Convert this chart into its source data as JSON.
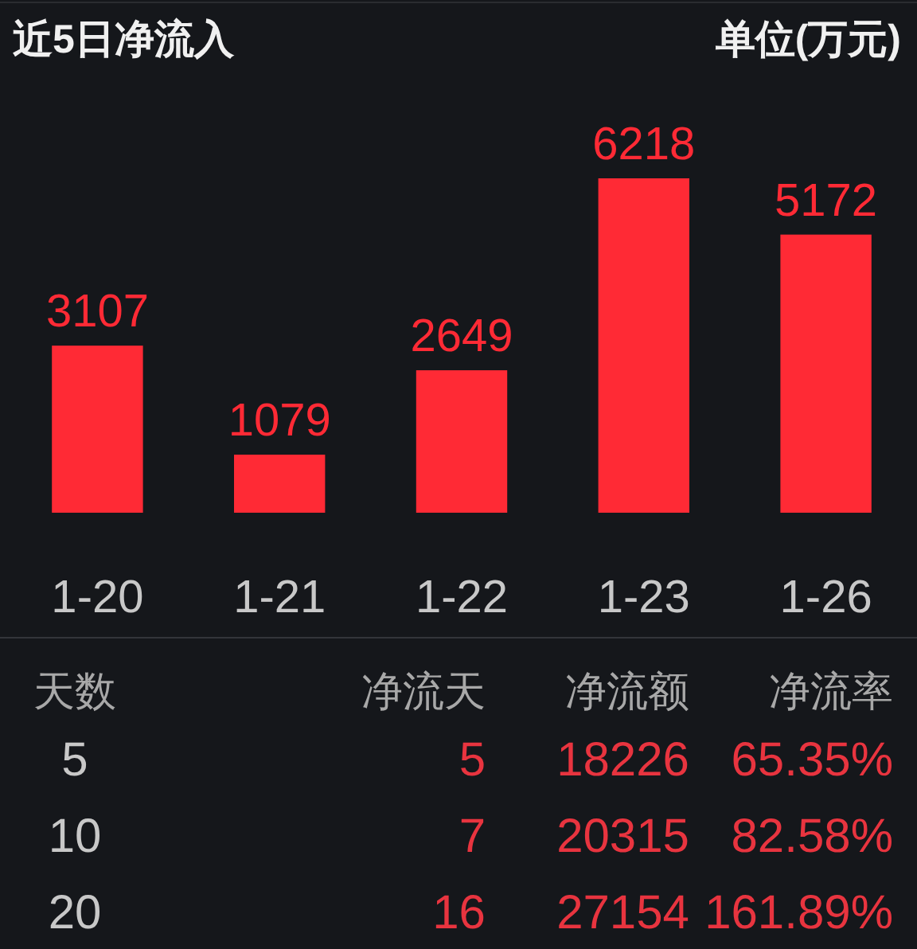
{
  "chart_data": [
    {
      "type": "bar",
      "title": "近5日净流入",
      "annotations": [
        "单位(万元)"
      ],
      "categories": [
        "1-20",
        "1-21",
        "1-22",
        "1-23",
        "1-26"
      ],
      "values": [
        3107,
        1079,
        2649,
        6218,
        5172
      ],
      "color": "#ff2a35",
      "data_labels": true
    },
    {
      "type": "other",
      "categories": [
        "天数",
        "净流天",
        "净流额",
        "净流率"
      ],
      "cell_labels": [
        [
          "5",
          "5",
          "18226",
          "65.35%"
        ],
        [
          "10",
          "7",
          "20315",
          "82.58%"
        ],
        [
          "20",
          "16",
          "27154",
          "161.89%"
        ]
      ],
      "colors": [
        "#c8c8c8",
        "#e8343f",
        "#e8343f",
        "#e8343f"
      ]
    }
  ]
}
